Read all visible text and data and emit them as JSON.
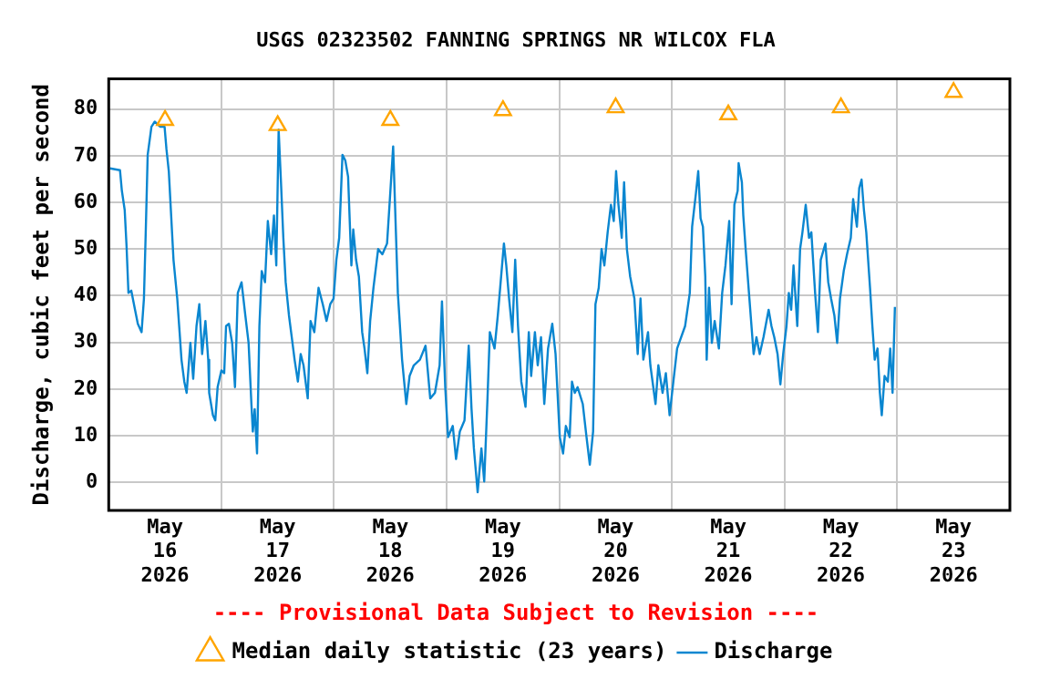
{
  "chart_data": {
    "type": "line",
    "title": "USGS 02323502 FANNING SPRINGS NR WILCOX FLA",
    "ylabel": "Discharge, cubic feet per second",
    "annotations": [
      "---- Provisional Data Subject to Revision ----"
    ],
    "xlim": [
      "2026-05-16T00:00",
      "2026-05-24T00:00"
    ],
    "xticks": [
      {
        "value": "2026-05-16T12:00",
        "label": "May\n16\n2026"
      },
      {
        "value": "2026-05-17T00:00",
        "label": null
      },
      {
        "value": "2026-05-17T12:00",
        "label": "May\n17\n2026"
      },
      {
        "value": "2026-05-18T00:00",
        "label": null
      },
      {
        "value": "2026-05-18T12:00",
        "label": "May\n18\n2026"
      },
      {
        "value": "2026-05-19T00:00",
        "label": null
      },
      {
        "value": "2026-05-19T12:00",
        "label": "May\n19\n2026"
      },
      {
        "value": "2026-05-20T00:00",
        "label": null
      },
      {
        "value": "2026-05-20T12:00",
        "label": "May\n20\n2026"
      },
      {
        "value": "2026-05-21T00:00",
        "label": null
      },
      {
        "value": "2026-05-21T12:00",
        "label": "May\n21\n2026"
      },
      {
        "value": "2026-05-22T00:00",
        "label": null
      },
      {
        "value": "2026-05-22T12:00",
        "label": "May\n22\n2026"
      },
      {
        "value": "2026-05-23T00:00",
        "label": null
      },
      {
        "value": "2026-05-23T12:00",
        "label": "May\n23\n2026"
      }
    ],
    "ylim": [
      -6,
      86.5
    ],
    "yticks": [
      0,
      10,
      20,
      30,
      40,
      50,
      60,
      70,
      80
    ],
    "grid": true,
    "legend": "bottom",
    "series": [
      {
        "name": "Median daily statistic (23 years)",
        "type": "scatter",
        "marker": "triangle",
        "color": "#ffa500",
        "x": [
          "2026-05-16T12:00",
          "2026-05-17T12:00",
          "2026-05-18T12:00",
          "2026-05-19T12:00",
          "2026-05-20T12:00",
          "2026-05-21T12:00",
          "2026-05-22T12:00",
          "2026-05-23T12:00"
        ],
        "values": [
          77.6,
          76.5,
          77.6,
          79.7,
          80.3,
          78.8,
          80.3,
          83.6
        ]
      },
      {
        "name": "Discharge",
        "marker": "none",
        "color": "#0a86d0",
        "x": [
          "2026-05-16T00:18",
          "2026-05-16T02:24",
          "2026-05-16T02:48",
          "2026-05-16T03:24",
          "2026-05-16T03:48",
          "2026-05-16T04:12",
          "2026-05-16T04:48",
          "2026-05-16T05:36",
          "2026-05-16T06:12",
          "2026-05-16T07:00",
          "2026-05-16T07:30",
          "2026-05-16T07:54",
          "2026-05-16T08:18",
          "2026-05-16T09:06",
          "2026-05-16T09:48",
          "2026-05-16T11:00",
          "2026-05-16T11:54",
          "2026-05-16T12:18",
          "2026-05-16T12:48",
          "2026-05-16T13:18",
          "2026-05-16T13:48",
          "2026-05-16T14:36",
          "2026-05-16T15:06",
          "2026-05-16T15:30",
          "2026-05-16T16:06",
          "2026-05-16T16:36",
          "2026-05-16T17:24",
          "2026-05-16T18:00",
          "2026-05-16T18:42",
          "2026-05-16T19:18",
          "2026-05-16T19:54",
          "2026-05-16T20:36",
          "2026-05-16T21:12",
          "2026-05-16T21:24",
          "2026-05-16T22:12",
          "2026-05-16T22:42",
          "2026-05-16T23:12",
          "2026-05-17T00:00",
          "2026-05-17T00:36",
          "2026-05-17T01:00",
          "2026-05-17T01:36",
          "2026-05-17T02:18",
          "2026-05-17T02:54",
          "2026-05-17T03:30",
          "2026-05-17T04:18",
          "2026-05-17T05:06",
          "2026-05-17T05:48",
          "2026-05-17T06:24",
          "2026-05-17T06:42",
          "2026-05-17T07:06",
          "2026-05-17T07:36",
          "2026-05-17T08:06",
          "2026-05-17T08:36",
          "2026-05-17T09:18",
          "2026-05-17T09:54",
          "2026-05-17T10:36",
          "2026-05-17T11:12",
          "2026-05-17T11:42",
          "2026-05-17T12:12",
          "2026-05-17T12:42",
          "2026-05-17T13:12",
          "2026-05-17T13:42",
          "2026-05-17T14:24",
          "2026-05-17T15:00",
          "2026-05-17T15:36",
          "2026-05-17T16:18",
          "2026-05-17T16:54",
          "2026-05-17T17:30",
          "2026-05-17T18:24",
          "2026-05-17T19:00",
          "2026-05-17T19:48",
          "2026-05-17T20:42",
          "2026-05-17T21:36",
          "2026-05-17T22:24",
          "2026-05-17T23:12",
          "2026-05-17T23:54",
          "2026-05-18T00:30",
          "2026-05-18T01:06",
          "2026-05-18T01:48",
          "2026-05-18T02:24",
          "2026-05-18T03:00",
          "2026-05-18T03:42",
          "2026-05-18T04:06",
          "2026-05-18T04:42",
          "2026-05-18T05:18",
          "2026-05-18T06:00",
          "2026-05-18T06:30",
          "2026-05-18T07:06",
          "2026-05-18T07:42",
          "2026-05-18T08:24",
          "2026-05-18T09:24",
          "2026-05-18T10:18",
          "2026-05-18T11:18",
          "2026-05-18T11:54",
          "2026-05-18T12:36",
          "2026-05-18T13:36",
          "2026-05-18T14:30",
          "2026-05-18T15:24",
          "2026-05-18T16:06",
          "2026-05-18T17:00",
          "2026-05-18T18:18",
          "2026-05-18T19:30",
          "2026-05-18T20:30",
          "2026-05-18T21:30",
          "2026-05-18T22:30",
          "2026-05-18T23:00",
          "2026-05-18T23:42",
          "2026-05-19T00:18",
          "2026-05-19T01:18",
          "2026-05-19T02:00",
          "2026-05-19T02:48",
          "2026-05-19T03:48",
          "2026-05-19T04:42",
          "2026-05-19T05:18",
          "2026-05-19T05:48",
          "2026-05-19T06:36",
          "2026-05-19T07:24",
          "2026-05-19T08:00",
          "2026-05-19T08:42",
          "2026-05-19T09:12",
          "2026-05-19T10:12",
          "2026-05-19T10:54",
          "2026-05-19T11:30",
          "2026-05-19T12:12",
          "2026-05-19T12:42",
          "2026-05-19T13:18",
          "2026-05-19T14:00",
          "2026-05-19T14:36",
          "2026-05-19T15:12",
          "2026-05-19T15:54",
          "2026-05-19T16:48",
          "2026-05-19T17:30",
          "2026-05-19T18:00",
          "2026-05-19T18:48",
          "2026-05-19T19:24",
          "2026-05-19T20:06",
          "2026-05-19T20:48",
          "2026-05-19T21:36",
          "2026-05-19T22:30",
          "2026-05-19T23:12",
          "2026-05-20T00:06",
          "2026-05-20T00:48",
          "2026-05-20T01:24",
          "2026-05-20T02:12",
          "2026-05-20T02:42",
          "2026-05-20T03:18",
          "2026-05-20T03:54",
          "2026-05-20T05:00",
          "2026-05-20T05:48",
          "2026-05-20T06:30",
          "2026-05-20T07:12",
          "2026-05-20T07:42",
          "2026-05-20T08:24",
          "2026-05-20T09:00",
          "2026-05-20T09:36",
          "2026-05-20T10:18",
          "2026-05-20T11:00",
          "2026-05-20T11:36",
          "2026-05-20T12:06",
          "2026-05-20T12:36",
          "2026-05-20T13:18",
          "2026-05-20T13:48",
          "2026-05-20T14:24",
          "2026-05-20T15:06",
          "2026-05-20T16:00",
          "2026-05-20T16:42",
          "2026-05-20T17:18",
          "2026-05-20T17:54",
          "2026-05-20T18:54",
          "2026-05-20T19:24",
          "2026-05-20T20:30",
          "2026-05-20T21:06",
          "2026-05-20T22:00",
          "2026-05-20T22:42",
          "2026-05-20T23:30",
          "2026-05-21T00:18",
          "2026-05-21T01:06",
          "2026-05-21T02:48",
          "2026-05-21T03:48",
          "2026-05-21T04:18",
          "2026-05-21T05:06",
          "2026-05-21T05:36",
          "2026-05-21T06:06",
          "2026-05-21T06:36",
          "2026-05-21T07:06",
          "2026-05-21T07:24",
          "2026-05-21T07:54",
          "2026-05-21T08:30",
          "2026-05-21T09:06",
          "2026-05-21T10:00",
          "2026-05-21T10:42",
          "2026-05-21T11:24",
          "2026-05-21T12:12",
          "2026-05-21T12:42",
          "2026-05-21T13:18",
          "2026-05-21T14:00",
          "2026-05-21T14:12",
          "2026-05-21T14:54",
          "2026-05-21T15:12",
          "2026-05-21T15:42",
          "2026-05-21T16:30",
          "2026-05-21T17:24",
          "2026-05-21T18:00",
          "2026-05-21T18:42",
          "2026-05-21T19:30",
          "2026-05-21T20:36",
          "2026-05-21T21:12",
          "2026-05-21T21:48",
          "2026-05-21T22:30",
          "2026-05-21T23:06",
          "2026-05-21T23:42",
          "2026-05-22T00:24",
          "2026-05-22T00:54",
          "2026-05-22T01:24",
          "2026-05-22T01:54",
          "2026-05-22T02:42",
          "2026-05-22T03:18",
          "2026-05-22T03:48",
          "2026-05-22T04:30",
          "2026-05-22T05:12",
          "2026-05-22T05:42",
          "2026-05-22T06:30",
          "2026-05-22T07:06",
          "2026-05-22T07:42",
          "2026-05-22T08:42",
          "2026-05-22T09:18",
          "2026-05-22T09:54",
          "2026-05-22T10:36",
          "2026-05-22T11:12",
          "2026-05-22T11:48",
          "2026-05-22T12:36",
          "2026-05-22T13:18",
          "2026-05-22T14:06",
          "2026-05-22T14:36",
          "2026-05-22T15:24",
          "2026-05-22T15:54",
          "2026-05-22T16:24",
          "2026-05-22T16:54",
          "2026-05-22T17:24",
          "2026-05-22T18:12",
          "2026-05-22T18:42",
          "2026-05-22T19:12",
          "2026-05-22T19:48",
          "2026-05-22T20:18",
          "2026-05-22T20:42",
          "2026-05-22T21:18",
          "2026-05-22T22:00",
          "2026-05-22T22:30",
          "2026-05-22T23:00",
          "2026-05-22T23:30"
        ],
        "values": [
          67.3,
          66.9,
          62.5,
          58.4,
          50.6,
          40.6,
          41.1,
          37,
          34,
          32.2,
          39.4,
          54.2,
          70.2,
          76.2,
          77.3,
          76.2,
          76.2,
          71.4,
          66.7,
          57.2,
          47.7,
          39.4,
          32.2,
          26.3,
          21.6,
          19.2,
          29.9,
          22.2,
          33.5,
          38.2,
          27.5,
          34.6,
          26.3,
          19.2,
          14.4,
          13.3,
          20.4,
          24,
          23.4,
          33.5,
          34,
          29.9,
          20.4,
          40.6,
          42.9,
          35.8,
          29.9,
          16.8,
          10.9,
          15.7,
          6.2,
          33.5,
          45.3,
          42.9,
          56,
          48.9,
          57.2,
          46.5,
          75.6,
          64.3,
          52.4,
          42.9,
          35.8,
          31.1,
          26.3,
          21.6,
          27.5,
          25.1,
          18,
          34.6,
          32.2,
          41.7,
          38.2,
          34.6,
          38.2,
          39.4,
          47.7,
          52.4,
          70.2,
          69,
          65.5,
          46.5,
          54.2,
          47.7,
          44.1,
          32.2,
          28.7,
          23.4,
          34.6,
          41.7,
          50,
          48.9,
          51.2,
          60.7,
          72,
          40.6,
          26.3,
          16.8,
          22.8,
          25.1,
          26.3,
          29.3,
          18,
          19.2,
          25.1,
          38.8,
          20.4,
          9.7,
          12.1,
          5,
          10.9,
          13.3,
          29.3,
          15.7,
          7.3,
          -2.1,
          7.3,
          0.2,
          18,
          32.2,
          28.7,
          35.8,
          42.9,
          51.2,
          46.5,
          39.4,
          32.2,
          47.7,
          33.5,
          21.6,
          16.2,
          32.2,
          22.8,
          32.2,
          25.1,
          31.1,
          16.8,
          28.7,
          34,
          27.5,
          9.7,
          6.2,
          12.1,
          9.7,
          21.6,
          19.2,
          20.4,
          16.8,
          9.7,
          3.8,
          10.9,
          38.2,
          41.7,
          50,
          46.5,
          53.6,
          59.5,
          56,
          66.7,
          59.5,
          52.4,
          64.3,
          50,
          44.1,
          39.4,
          27.5,
          39.4,
          26.3,
          32.2,
          25.1,
          16.8,
          25.1,
          19.2,
          23.4,
          14.4,
          21.6,
          28.7,
          33.5,
          40.6,
          54.8,
          61.9,
          66.7,
          56.6,
          54.8,
          44.1,
          26.3,
          41.7,
          29.9,
          34.6,
          28.7,
          40.6,
          46.5,
          56,
          38.2,
          59.5,
          62.5,
          68.4,
          64.3,
          57.2,
          50,
          39.4,
          27.5,
          31.1,
          27.5,
          31.1,
          37,
          33.5,
          31.1,
          27.5,
          21,
          27.5,
          33.5,
          40.6,
          37,
          46.5,
          33.5,
          50,
          53.6,
          59.5,
          52.4,
          53.6,
          40.6,
          32.2,
          47.7,
          51.2,
          42.9,
          39.4,
          35.8,
          29.9,
          39.4,
          45.3,
          48.9,
          52.4,
          60.7,
          54.8,
          63.1,
          64.9,
          58.4,
          53.6,
          41.7,
          33.5,
          26.3,
          28.7,
          19.2,
          14.4,
          22.8,
          21.6,
          28.7,
          19.2,
          37.6
        ]
      }
    ]
  }
}
